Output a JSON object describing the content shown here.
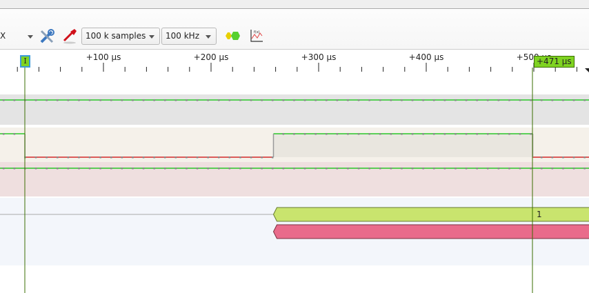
{
  "toolbar": {
    "device_fragment": "X",
    "samples": "100 k samples",
    "samplerate": "100 kHz",
    "icons": [
      "chevron-down-icon",
      "configure-tools-icon",
      "probe-icon",
      "add-decoder-icon",
      "math-function-icon"
    ]
  },
  "ruler": {
    "ticks": [
      {
        "label": "+100 µs",
        "us": 100
      },
      {
        "label": "+200 µs",
        "us": 200
      },
      {
        "label": "+300 µs",
        "us": 300
      },
      {
        "label": "+400 µs",
        "us": 400
      },
      {
        "label": "+500 µs",
        "us": 500
      }
    ],
    "cursor_label": "I",
    "cursor_delta": "+471 µs"
  },
  "traces": {
    "channels": [
      {
        "band_color": "#e4e4e4",
        "level": "high"
      },
      {
        "band_color": "#f5f1ea",
        "transitions": [
          {
            "us": 27,
            "to": "low"
          },
          {
            "us": 258,
            "to": "high"
          },
          {
            "us": 499,
            "to": "low"
          }
        ]
      },
      {
        "band_color": "#efdfdf",
        "level": "high"
      }
    ],
    "decoder": {
      "band_color": "#f3f6fb",
      "annotations": [
        {
          "text": "1",
          "color": "#c9e46e",
          "start_us": 258
        },
        {
          "text": "",
          "color": "#e96b8b",
          "start_us": 258
        }
      ]
    }
  },
  "colors": {
    "high": "#00c000",
    "low": "#cc0000",
    "cursor": "#3a6e00",
    "cursor_flag": "#7fd321"
  }
}
